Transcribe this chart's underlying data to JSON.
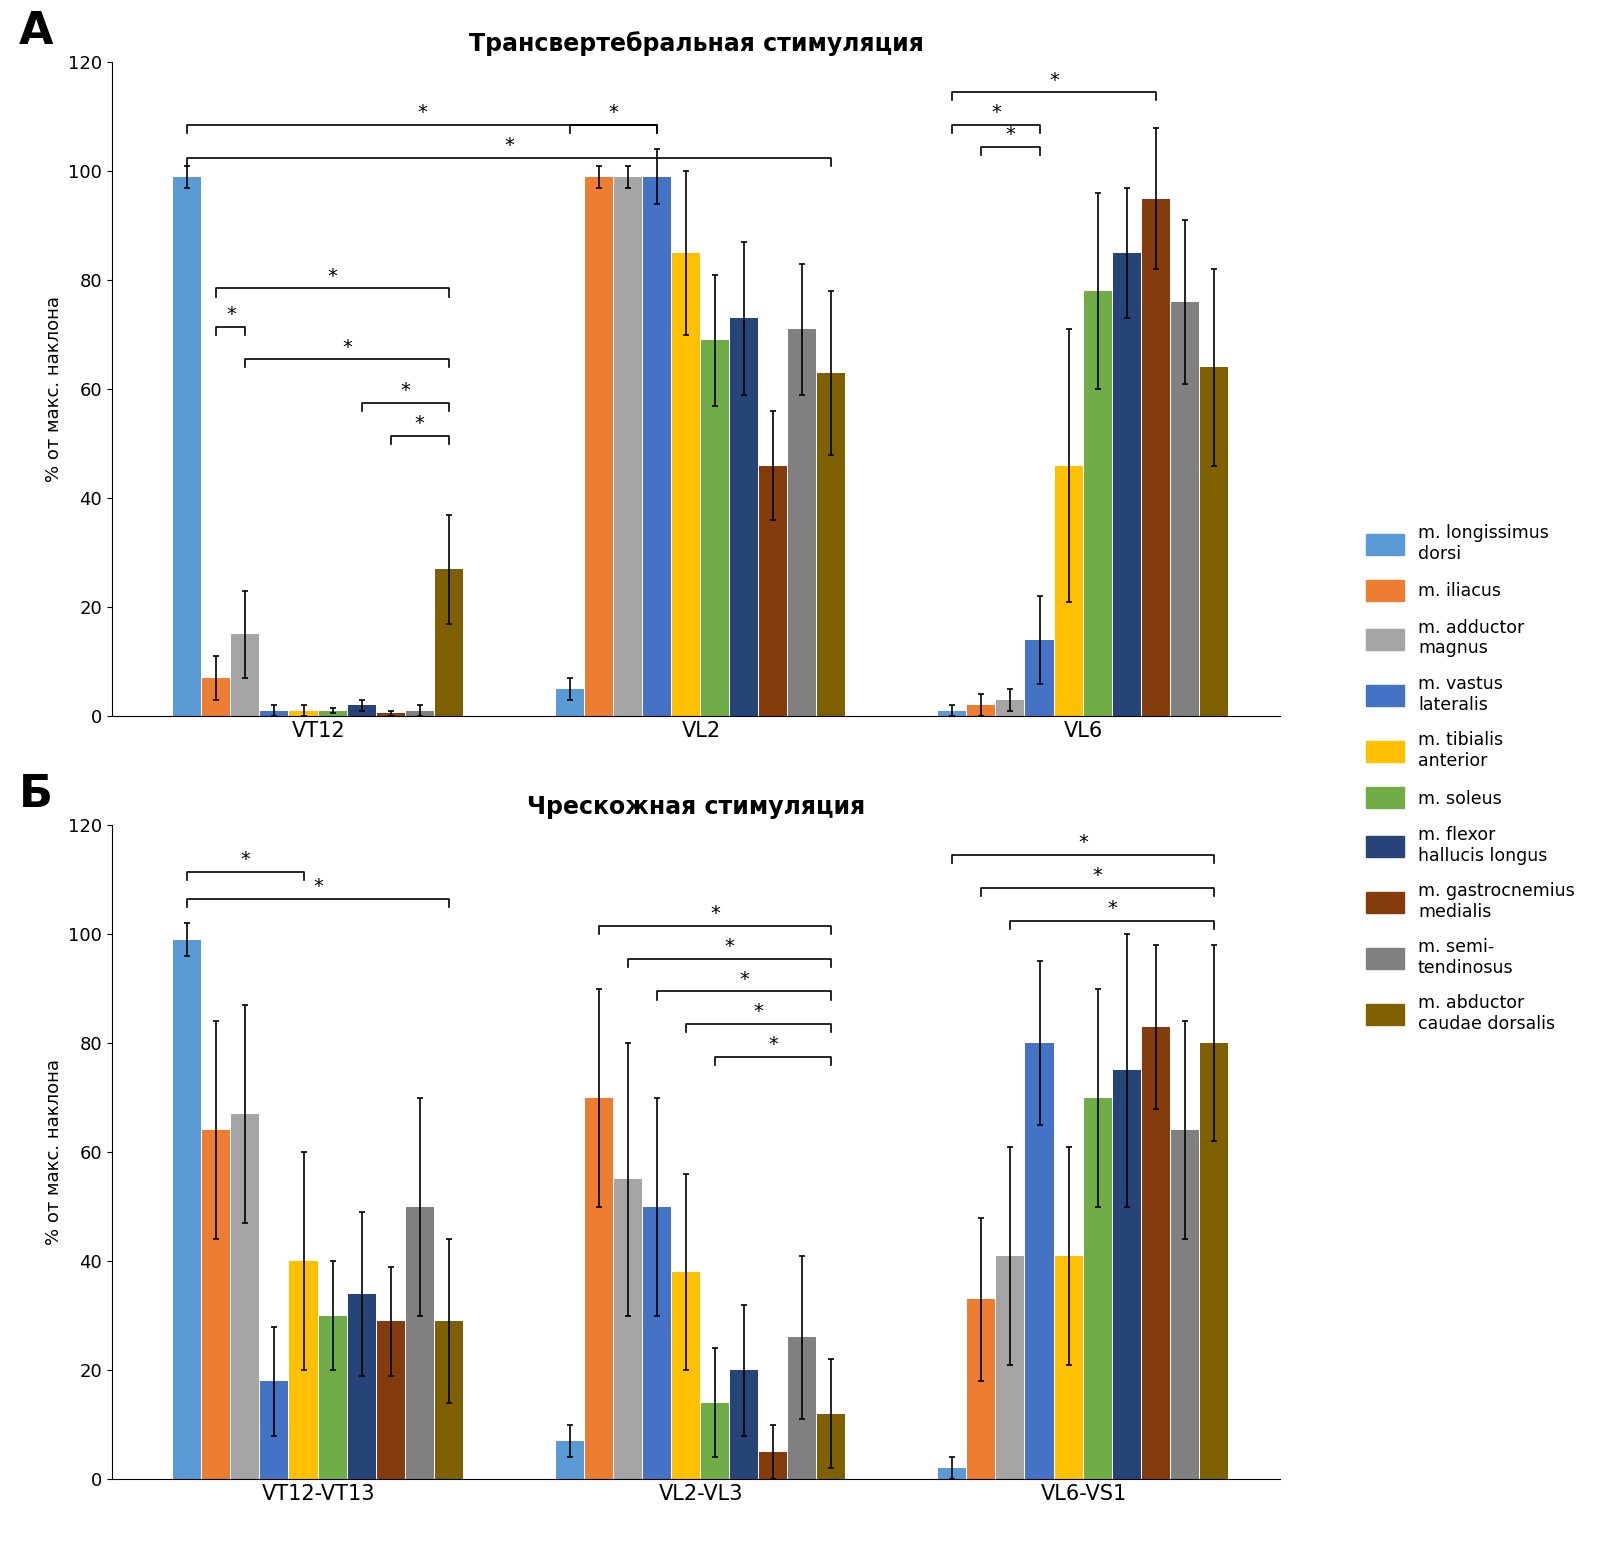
{
  "panel_a_title": "Трансвертебральная стимуляция",
  "panel_b_title": "Чрескожная стимуляция",
  "ylabel": "% от макс. наклона",
  "panel_a_groups": [
    "VT12",
    "VL2",
    "VL6"
  ],
  "panel_b_groups": [
    "VT12-VT13",
    "VL2-VL3",
    "VL6-VS1"
  ],
  "colors": [
    "#5B9BD5",
    "#ED7D31",
    "#A5A5A5",
    "#4472C4",
    "#FFC000",
    "#70AD47",
    "#264478",
    "#843C0C",
    "#808080",
    "#7F6000"
  ],
  "panel_a_values": {
    "VT12": [
      99,
      7,
      15,
      1,
      1,
      1,
      2,
      0.5,
      1,
      27
    ],
    "VL2": [
      5,
      99,
      99,
      99,
      85,
      69,
      73,
      46,
      71,
      63
    ],
    "VL6": [
      1,
      2,
      3,
      14,
      46,
      78,
      85,
      95,
      76,
      64
    ]
  },
  "panel_a_errors": {
    "VT12": [
      2,
      4,
      8,
      1,
      1,
      0.5,
      1,
      0.5,
      1,
      10
    ],
    "VL2": [
      2,
      2,
      2,
      5,
      15,
      12,
      14,
      10,
      12,
      15
    ],
    "VL6": [
      1,
      2,
      2,
      8,
      25,
      18,
      12,
      13,
      15,
      18
    ]
  },
  "panel_b_values": {
    "VT12-VT13": [
      99,
      64,
      67,
      18,
      40,
      30,
      34,
      29,
      50,
      29
    ],
    "VL2-VL3": [
      7,
      70,
      55,
      50,
      38,
      14,
      20,
      5,
      26,
      12
    ],
    "VL6-VS1": [
      2,
      33,
      41,
      80,
      41,
      70,
      75,
      83,
      64,
      80
    ]
  },
  "panel_b_errors": {
    "VT12-VT13": [
      3,
      20,
      20,
      10,
      20,
      10,
      15,
      10,
      20,
      15
    ],
    "VL2-VL3": [
      3,
      20,
      25,
      20,
      18,
      10,
      12,
      5,
      15,
      10
    ],
    "VL6-VS1": [
      2,
      15,
      20,
      15,
      20,
      20,
      25,
      15,
      20,
      18
    ]
  },
  "ylim": [
    0,
    120
  ],
  "yticks": [
    0,
    20,
    40,
    60,
    80,
    100,
    120
  ],
  "legend_labels": [
    "m. longissimus\ndorsi",
    "m. iliacus",
    "m. adductor\nmagnus",
    "m. vastus\nlateralis",
    "m. tibialis\nanterior",
    "m. soleus",
    "m. flexor\nhallucis longus",
    "m. gastrocnemius\nmedialis",
    "m. semi-\ntendinosus",
    "m. abductor\ncaudae dorsalis"
  ]
}
